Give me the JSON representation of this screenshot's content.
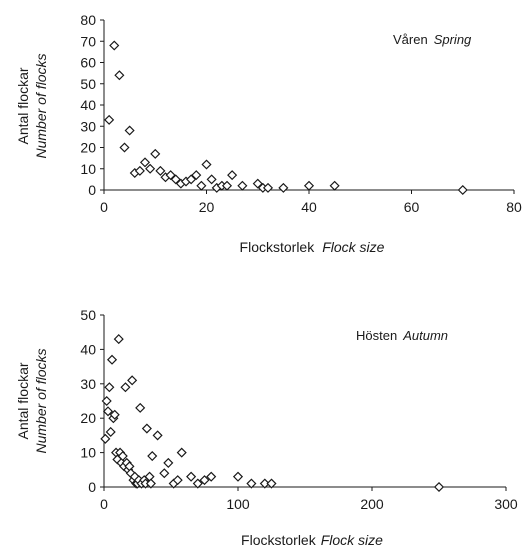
{
  "chart_data": [
    {
      "type": "scatter",
      "xlabel": "Flockstorlek",
      "xlabel_italic": "Flock size",
      "ylabel": "Antal flockar",
      "ylabel_italic": "Number of flocks",
      "annotation": "Våren",
      "annotation_italic": "Spring",
      "xlim": [
        0,
        80
      ],
      "ylim": [
        0,
        80
      ],
      "xticks": [
        0,
        20,
        40,
        60,
        80
      ],
      "yticks": [
        0,
        10,
        20,
        30,
        40,
        50,
        60,
        70,
        80
      ],
      "grid": false,
      "marker": "diamond-open",
      "points": [
        [
          1,
          33
        ],
        [
          2,
          68
        ],
        [
          3,
          54
        ],
        [
          4,
          20
        ],
        [
          5,
          28
        ],
        [
          6,
          8
        ],
        [
          7,
          9
        ],
        [
          8,
          13
        ],
        [
          9,
          10
        ],
        [
          10,
          17
        ],
        [
          11,
          9
        ],
        [
          12,
          6
        ],
        [
          13,
          7
        ],
        [
          14,
          5
        ],
        [
          15,
          3
        ],
        [
          16,
          4
        ],
        [
          17,
          5
        ],
        [
          18,
          7
        ],
        [
          19,
          2
        ],
        [
          20,
          12
        ],
        [
          21,
          5
        ],
        [
          22,
          1
        ],
        [
          23,
          2
        ],
        [
          24,
          2
        ],
        [
          25,
          7
        ],
        [
          27,
          2
        ],
        [
          30,
          3
        ],
        [
          31,
          1
        ],
        [
          32,
          1
        ],
        [
          35,
          1
        ],
        [
          40,
          2
        ],
        [
          45,
          2
        ],
        [
          70,
          0
        ]
      ]
    },
    {
      "type": "scatter",
      "xlabel": "Flockstorlek",
      "xlabel_italic": "Flock size",
      "ylabel": "Antal flockar",
      "ylabel_italic": "Number of flocks",
      "annotation": "Hösten",
      "annotation_italic": "Autumn",
      "xlim": [
        0,
        300
      ],
      "ylim": [
        0,
        50
      ],
      "xticks": [
        0,
        100,
        200,
        300
      ],
      "yticks": [
        0,
        10,
        20,
        30,
        40,
        50
      ],
      "grid": false,
      "marker": "diamond-open",
      "points": [
        [
          1,
          14
        ],
        [
          2,
          25
        ],
        [
          3,
          22
        ],
        [
          4,
          29
        ],
        [
          5,
          16
        ],
        [
          6,
          37
        ],
        [
          7,
          20
        ],
        [
          8,
          21
        ],
        [
          9,
          10
        ],
        [
          10,
          8
        ],
        [
          11,
          43
        ],
        [
          12,
          10
        ],
        [
          13,
          7
        ],
        [
          14,
          9
        ],
        [
          15,
          6
        ],
        [
          16,
          29
        ],
        [
          17,
          7
        ],
        [
          18,
          5
        ],
        [
          19,
          6
        ],
        [
          20,
          4
        ],
        [
          21,
          31
        ],
        [
          22,
          2
        ],
        [
          23,
          3
        ],
        [
          24,
          1
        ],
        [
          25,
          1
        ],
        [
          26,
          2
        ],
        [
          27,
          23
        ],
        [
          28,
          1
        ],
        [
          30,
          2
        ],
        [
          31,
          1
        ],
        [
          32,
          17
        ],
        [
          34,
          3
        ],
        [
          35,
          1
        ],
        [
          36,
          9
        ],
        [
          40,
          15
        ],
        [
          45,
          4
        ],
        [
          48,
          7
        ],
        [
          52,
          1
        ],
        [
          55,
          2
        ],
        [
          58,
          10
        ],
        [
          65,
          3
        ],
        [
          70,
          1
        ],
        [
          75,
          2
        ],
        [
          80,
          3
        ],
        [
          100,
          3
        ],
        [
          110,
          1
        ],
        [
          120,
          1
        ],
        [
          125,
          1
        ],
        [
          250,
          0
        ]
      ]
    }
  ]
}
